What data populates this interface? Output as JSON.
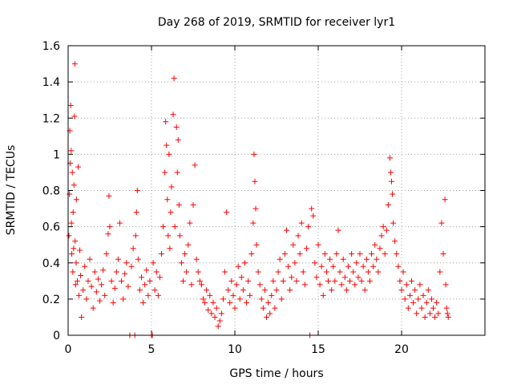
{
  "chart_data": {
    "type": "scatter",
    "title": "Day 268 of 2019, SRMTID for receiver lyr1",
    "xlabel": "GPS time / hours",
    "ylabel": "SRMTID / TECUs",
    "xlim": [
      0,
      25
    ],
    "ylim": [
      0,
      1.6
    ],
    "xticks": [
      0,
      5,
      10,
      15,
      20
    ],
    "yticks": [
      0,
      0.2,
      0.4,
      0.6,
      0.8,
      1,
      1.2,
      1.4,
      1.6
    ],
    "xtick_labels": [
      "0",
      "5",
      "10",
      "15",
      "20"
    ],
    "ytick_labels": [
      "0",
      "0.2",
      "0.4",
      "0.6",
      "0.8",
      "1",
      "1.2",
      "1.4",
      "1.6"
    ],
    "grid": true,
    "marker": "+",
    "color": "#ff0000",
    "series": [
      {
        "name": "SRMTID",
        "points": [
          [
            0.05,
            0.55
          ],
          [
            0.08,
            0.78
          ],
          [
            0.1,
            1.13
          ],
          [
            0.12,
            0.95
          ],
          [
            0.15,
            1.27
          ],
          [
            0.18,
            1.02
          ],
          [
            0.2,
            0.62
          ],
          [
            0.22,
            0.45
          ],
          [
            0.25,
            0.9
          ],
          [
            0.28,
            0.35
          ],
          [
            0.3,
            0.68
          ],
          [
            0.33,
            0.48
          ],
          [
            0.35,
            0.83
          ],
          [
            0.38,
            1.21
          ],
          [
            0.4,
            1.5
          ],
          [
            0.42,
            0.52
          ],
          [
            0.45,
            0.28
          ],
          [
            0.48,
            0.4
          ],
          [
            0.5,
            0.75
          ],
          [
            0.55,
            0.3
          ],
          [
            0.6,
            0.93
          ],
          [
            0.65,
            0.22
          ],
          [
            0.7,
            0.47
          ],
          [
            0.75,
            0.33
          ],
          [
            0.8,
            0.1
          ],
          [
            0.9,
            0.25
          ],
          [
            1.0,
            0.38
          ],
          [
            1.1,
            0.2
          ],
          [
            1.2,
            0.3
          ],
          [
            1.3,
            0.42
          ],
          [
            1.4,
            0.27
          ],
          [
            1.5,
            0.15
          ],
          [
            1.6,
            0.35
          ],
          [
            1.7,
            0.24
          ],
          [
            1.8,
            0.31
          ],
          [
            1.9,
            0.19
          ],
          [
            2.0,
            0.28
          ],
          [
            2.1,
            0.36
          ],
          [
            2.2,
            0.22
          ],
          [
            2.3,
            0.45
          ],
          [
            2.4,
            0.56
          ],
          [
            2.45,
            0.77
          ],
          [
            2.5,
            0.6
          ],
          [
            2.6,
            0.3
          ],
          [
            2.7,
            0.18
          ],
          [
            2.8,
            0.26
          ],
          [
            2.9,
            0.35
          ],
          [
            3.0,
            0.42
          ],
          [
            3.1,
            0.62
          ],
          [
            3.2,
            0.3
          ],
          [
            3.3,
            0.2
          ],
          [
            3.4,
            0.34
          ],
          [
            3.5,
            0.4
          ],
          [
            3.6,
            0.27
          ],
          [
            3.7,
            0.0
          ],
          [
            3.8,
            0.38
          ],
          [
            3.9,
            0.48
          ],
          [
            4.0,
            0.0
          ],
          [
            4.05,
            0.55
          ],
          [
            4.1,
            0.68
          ],
          [
            4.15,
            0.8
          ],
          [
            4.2,
            0.42
          ],
          [
            4.3,
            0.25
          ],
          [
            4.4,
            0.32
          ],
          [
            4.5,
            0.18
          ],
          [
            4.6,
            0.28
          ],
          [
            4.7,
            0.36
          ],
          [
            4.8,
            0.22
          ],
          [
            4.9,
            0.3
          ],
          [
            5.0,
            0.0
          ],
          [
            5.05,
            0.0
          ],
          [
            5.1,
            0.4
          ],
          [
            5.2,
            0.25
          ],
          [
            5.3,
            0.35
          ],
          [
            5.4,
            0.22
          ],
          [
            5.5,
            0.32
          ],
          [
            5.6,
            0.45
          ],
          [
            5.7,
            0.6
          ],
          [
            5.8,
            0.9
          ],
          [
            5.85,
            1.18
          ],
          [
            5.9,
            1.05
          ],
          [
            5.95,
            0.75
          ],
          [
            6.0,
            0.55
          ],
          [
            6.05,
            1.0
          ],
          [
            6.1,
            0.48
          ],
          [
            6.15,
            0.68
          ],
          [
            6.2,
            0.82
          ],
          [
            6.3,
            1.22
          ],
          [
            6.35,
            1.42
          ],
          [
            6.4,
            0.6
          ],
          [
            6.5,
            1.15
          ],
          [
            6.55,
            0.9
          ],
          [
            6.6,
            1.08
          ],
          [
            6.65,
            0.72
          ],
          [
            6.7,
            0.55
          ],
          [
            6.8,
            0.4
          ],
          [
            6.9,
            0.3
          ],
          [
            7.0,
            0.45
          ],
          [
            7.1,
            0.35
          ],
          [
            7.2,
            0.5
          ],
          [
            7.3,
            0.62
          ],
          [
            7.4,
            0.28
          ],
          [
            7.5,
            0.72
          ],
          [
            7.6,
            0.94
          ],
          [
            7.7,
            0.42
          ],
          [
            7.8,
            0.35
          ],
          [
            7.9,
            0.3
          ],
          [
            8.0,
            0.28
          ],
          [
            8.1,
            0.2
          ],
          [
            8.2,
            0.18
          ],
          [
            8.3,
            0.25
          ],
          [
            8.4,
            0.14
          ],
          [
            8.5,
            0.22
          ],
          [
            8.6,
            0.12
          ],
          [
            8.7,
            0.18
          ],
          [
            8.8,
            0.1
          ],
          [
            8.9,
            0.15
          ],
          [
            9.0,
            0.05
          ],
          [
            9.1,
            0.08
          ],
          [
            9.2,
            0.12
          ],
          [
            9.3,
            0.2
          ],
          [
            9.4,
            0.35
          ],
          [
            9.5,
            0.68
          ],
          [
            9.6,
            0.25
          ],
          [
            9.7,
            0.18
          ],
          [
            9.8,
            0.3
          ],
          [
            9.9,
            0.22
          ],
          [
            10.0,
            0.15
          ],
          [
            10.1,
            0.28
          ],
          [
            10.2,
            0.38
          ],
          [
            10.3,
            0.2
          ],
          [
            10.4,
            0.32
          ],
          [
            10.5,
            0.25
          ],
          [
            10.6,
            0.4
          ],
          [
            10.7,
            0.18
          ],
          [
            10.8,
            0.3
          ],
          [
            10.9,
            0.22
          ],
          [
            11.0,
            0.45
          ],
          [
            11.1,
            0.62
          ],
          [
            11.15,
            1.0
          ],
          [
            11.2,
            0.85
          ],
          [
            11.25,
            0.7
          ],
          [
            11.3,
            0.5
          ],
          [
            11.4,
            0.35
          ],
          [
            11.5,
            0.28
          ],
          [
            11.6,
            0.2
          ],
          [
            11.7,
            0.15
          ],
          [
            11.8,
            0.25
          ],
          [
            11.9,
            0.1
          ],
          [
            12.0,
            0.18
          ],
          [
            12.1,
            0.12
          ],
          [
            12.2,
            0.22
          ],
          [
            12.3,
            0.3
          ],
          [
            12.4,
            0.15
          ],
          [
            12.5,
            0.25
          ],
          [
            12.6,
            0.35
          ],
          [
            12.7,
            0.42
          ],
          [
            12.8,
            0.2
          ],
          [
            12.9,
            0.3
          ],
          [
            13.0,
            0.45
          ],
          [
            13.1,
            0.58
          ],
          [
            13.2,
            0.38
          ],
          [
            13.3,
            0.25
          ],
          [
            13.4,
            0.32
          ],
          [
            13.5,
            0.5
          ],
          [
            13.6,
            0.4
          ],
          [
            13.7,
            0.3
          ],
          [
            13.8,
            0.55
          ],
          [
            13.9,
            0.45
          ],
          [
            14.0,
            0.62
          ],
          [
            14.1,
            0.35
          ],
          [
            14.2,
            0.28
          ],
          [
            14.3,
            0.48
          ],
          [
            14.4,
            0.6
          ],
          [
            14.5,
            0.0
          ],
          [
            14.6,
            0.7
          ],
          [
            14.7,
            0.66
          ],
          [
            14.8,
            0.4
          ],
          [
            14.9,
            0.32
          ],
          [
            15.0,
            0.5
          ],
          [
            15.1,
            0.28
          ],
          [
            15.2,
            0.38
          ],
          [
            15.3,
            0.22
          ],
          [
            15.4,
            0.45
          ],
          [
            15.5,
            0.35
          ],
          [
            15.6,
            0.3
          ],
          [
            15.7,
            0.42
          ],
          [
            15.8,
            0.25
          ],
          [
            15.9,
            0.38
          ],
          [
            16.0,
            0.3
          ],
          [
            16.1,
            0.45
          ],
          [
            16.2,
            0.58
          ],
          [
            16.3,
            0.35
          ],
          [
            16.4,
            0.28
          ],
          [
            16.5,
            0.42
          ],
          [
            16.6,
            0.32
          ],
          [
            16.7,
            0.25
          ],
          [
            16.8,
            0.38
          ],
          [
            16.9,
            0.3
          ],
          [
            17.0,
            0.45
          ],
          [
            17.1,
            0.35
          ],
          [
            17.2,
            0.28
          ],
          [
            17.3,
            0.4
          ],
          [
            17.4,
            0.32
          ],
          [
            17.5,
            0.45
          ],
          [
            17.6,
            0.3
          ],
          [
            17.7,
            0.38
          ],
          [
            17.8,
            0.25
          ],
          [
            17.9,
            0.42
          ],
          [
            18.0,
            0.35
          ],
          [
            18.1,
            0.3
          ],
          [
            18.2,
            0.45
          ],
          [
            18.3,
            0.38
          ],
          [
            18.4,
            0.5
          ],
          [
            18.5,
            0.42
          ],
          [
            18.6,
            0.35
          ],
          [
            18.7,
            0.48
          ],
          [
            18.8,
            0.55
          ],
          [
            18.9,
            0.6
          ],
          [
            19.0,
            0.45
          ],
          [
            19.1,
            0.58
          ],
          [
            19.2,
            0.72
          ],
          [
            19.3,
            0.98
          ],
          [
            19.35,
            0.9
          ],
          [
            19.4,
            0.85
          ],
          [
            19.45,
            0.78
          ],
          [
            19.5,
            0.62
          ],
          [
            19.6,
            0.52
          ],
          [
            19.7,
            0.45
          ],
          [
            19.8,
            0.38
          ],
          [
            19.9,
            0.3
          ],
          [
            20.0,
            0.25
          ],
          [
            20.1,
            0.35
          ],
          [
            20.2,
            0.2
          ],
          [
            20.3,
            0.28
          ],
          [
            20.4,
            0.15
          ],
          [
            20.5,
            0.22
          ],
          [
            20.6,
            0.3
          ],
          [
            20.7,
            0.18
          ],
          [
            20.8,
            0.25
          ],
          [
            20.9,
            0.12
          ],
          [
            21.0,
            0.2
          ],
          [
            21.1,
            0.28
          ],
          [
            21.2,
            0.15
          ],
          [
            21.3,
            0.22
          ],
          [
            21.4,
            0.1
          ],
          [
            21.5,
            0.18
          ],
          [
            21.6,
            0.25
          ],
          [
            21.7,
            0.12
          ],
          [
            21.8,
            0.2
          ],
          [
            21.9,
            0.15
          ],
          [
            22.0,
            0.1
          ],
          [
            22.1,
            0.18
          ],
          [
            22.2,
            0.12
          ],
          [
            22.3,
            0.35
          ],
          [
            22.4,
            0.62
          ],
          [
            22.5,
            0.45
          ],
          [
            22.6,
            0.75
          ],
          [
            22.65,
            0.28
          ],
          [
            22.7,
            0.15
          ],
          [
            22.75,
            0.12
          ],
          [
            22.8,
            0.1
          ]
        ]
      }
    ]
  }
}
